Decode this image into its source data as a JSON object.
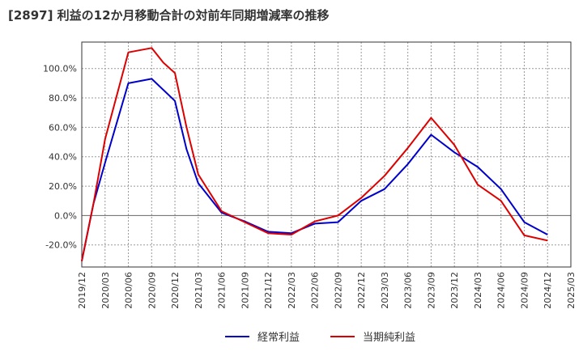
{
  "chart_data": {
    "type": "line",
    "title": "[2897]  利益の12か月移動合計の対前年同期増減率の推移",
    "xlabel": "",
    "ylabel": "",
    "ylim": [
      -35,
      118
    ],
    "y_ticks": [
      -20,
      0,
      20,
      40,
      60,
      80,
      100
    ],
    "y_tick_labels": [
      "-20.0%",
      "0.0%",
      "20.0%",
      "40.0%",
      "60.0%",
      "80.0%",
      "100.0%"
    ],
    "categories": [
      "2019/12",
      "2020/03",
      "2020/06",
      "2020/09",
      "2020/12",
      "2021/03",
      "2021/06",
      "2021/09",
      "2021/12",
      "2022/03",
      "2022/06",
      "2022/09",
      "2022/12",
      "2023/03",
      "2023/06",
      "2023/09",
      "2023/12",
      "2024/03",
      "2024/06",
      "2024/09",
      "2024/12",
      "2025/03"
    ],
    "grid": true,
    "legend_position": "bottom",
    "series": [
      {
        "name": "経常利益",
        "color": "#0000cc",
        "x_start_index": 0,
        "x_step": 1,
        "points": [
          {
            "i": 0,
            "v": -31
          },
          {
            "i": 0.5,
            "v": 8
          },
          {
            "i": 1,
            "v": 36
          },
          {
            "i": 2,
            "v": 90
          },
          {
            "i": 3,
            "v": 93
          },
          {
            "i": 4,
            "v": 78
          },
          {
            "i": 4.5,
            "v": 45
          },
          {
            "i": 5,
            "v": 22
          },
          {
            "i": 6,
            "v": 2
          },
          {
            "i": 7,
            "v": -4
          },
          {
            "i": 8,
            "v": -11
          },
          {
            "i": 9,
            "v": -12
          },
          {
            "i": 10,
            "v": -5.5
          },
          {
            "i": 11,
            "v": -4.5
          },
          {
            "i": 12,
            "v": 10
          },
          {
            "i": 13,
            "v": 18
          },
          {
            "i": 14,
            "v": 35
          },
          {
            "i": 15,
            "v": 55
          },
          {
            "i": 16,
            "v": 43
          },
          {
            "i": 17,
            "v": 33
          },
          {
            "i": 18,
            "v": 18
          },
          {
            "i": 19,
            "v": -4.5
          },
          {
            "i": 20,
            "v": -13
          }
        ]
      },
      {
        "name": "当期純利益",
        "color": "#dd0000",
        "points": [
          {
            "i": 0,
            "v": -31
          },
          {
            "i": 0.5,
            "v": 8
          },
          {
            "i": 1,
            "v": 52
          },
          {
            "i": 2,
            "v": 111
          },
          {
            "i": 3,
            "v": 114
          },
          {
            "i": 3.5,
            "v": 104
          },
          {
            "i": 4,
            "v": 97
          },
          {
            "i": 4.5,
            "v": 60
          },
          {
            "i": 5,
            "v": 28
          },
          {
            "i": 6,
            "v": 3
          },
          {
            "i": 7,
            "v": -4.5
          },
          {
            "i": 8,
            "v": -12
          },
          {
            "i": 9,
            "v": -13
          },
          {
            "i": 10,
            "v": -4
          },
          {
            "i": 11,
            "v": 0
          },
          {
            "i": 12,
            "v": 12
          },
          {
            "i": 13,
            "v": 27
          },
          {
            "i": 14,
            "v": 46
          },
          {
            "i": 15,
            "v": 66.5
          },
          {
            "i": 16,
            "v": 48
          },
          {
            "i": 17,
            "v": 21
          },
          {
            "i": 18,
            "v": 10
          },
          {
            "i": 19,
            "v": -13.5
          },
          {
            "i": 20,
            "v": -17
          }
        ]
      }
    ]
  }
}
